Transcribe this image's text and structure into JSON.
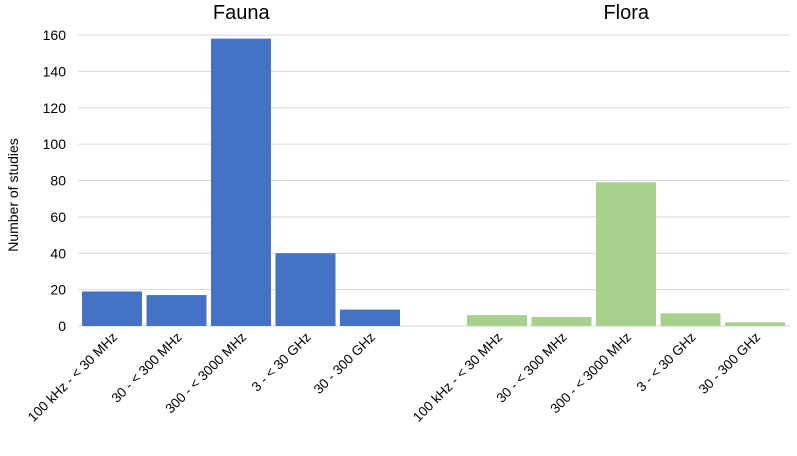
{
  "chart_data": {
    "type": "bar",
    "ylabel": "Number of studies",
    "ylim": [
      0,
      160
    ],
    "yticks": [
      0,
      20,
      40,
      60,
      80,
      100,
      120,
      140,
      160
    ],
    "grid": true,
    "legend": "none",
    "categories": [
      "100 kHz - < 30 MHz",
      "30 - < 300 MHz",
      "300 - < 3000 MHz",
      "3 - < 30 GHz",
      "30 - 300 GHz"
    ],
    "series": [
      {
        "name": "Fauna",
        "color": "#4472c4",
        "values": [
          19,
          17,
          158,
          40,
          9
        ]
      },
      {
        "name": "Flora",
        "color": "#a9d18e",
        "values": [
          6,
          5,
          79,
          7,
          2
        ]
      }
    ]
  }
}
